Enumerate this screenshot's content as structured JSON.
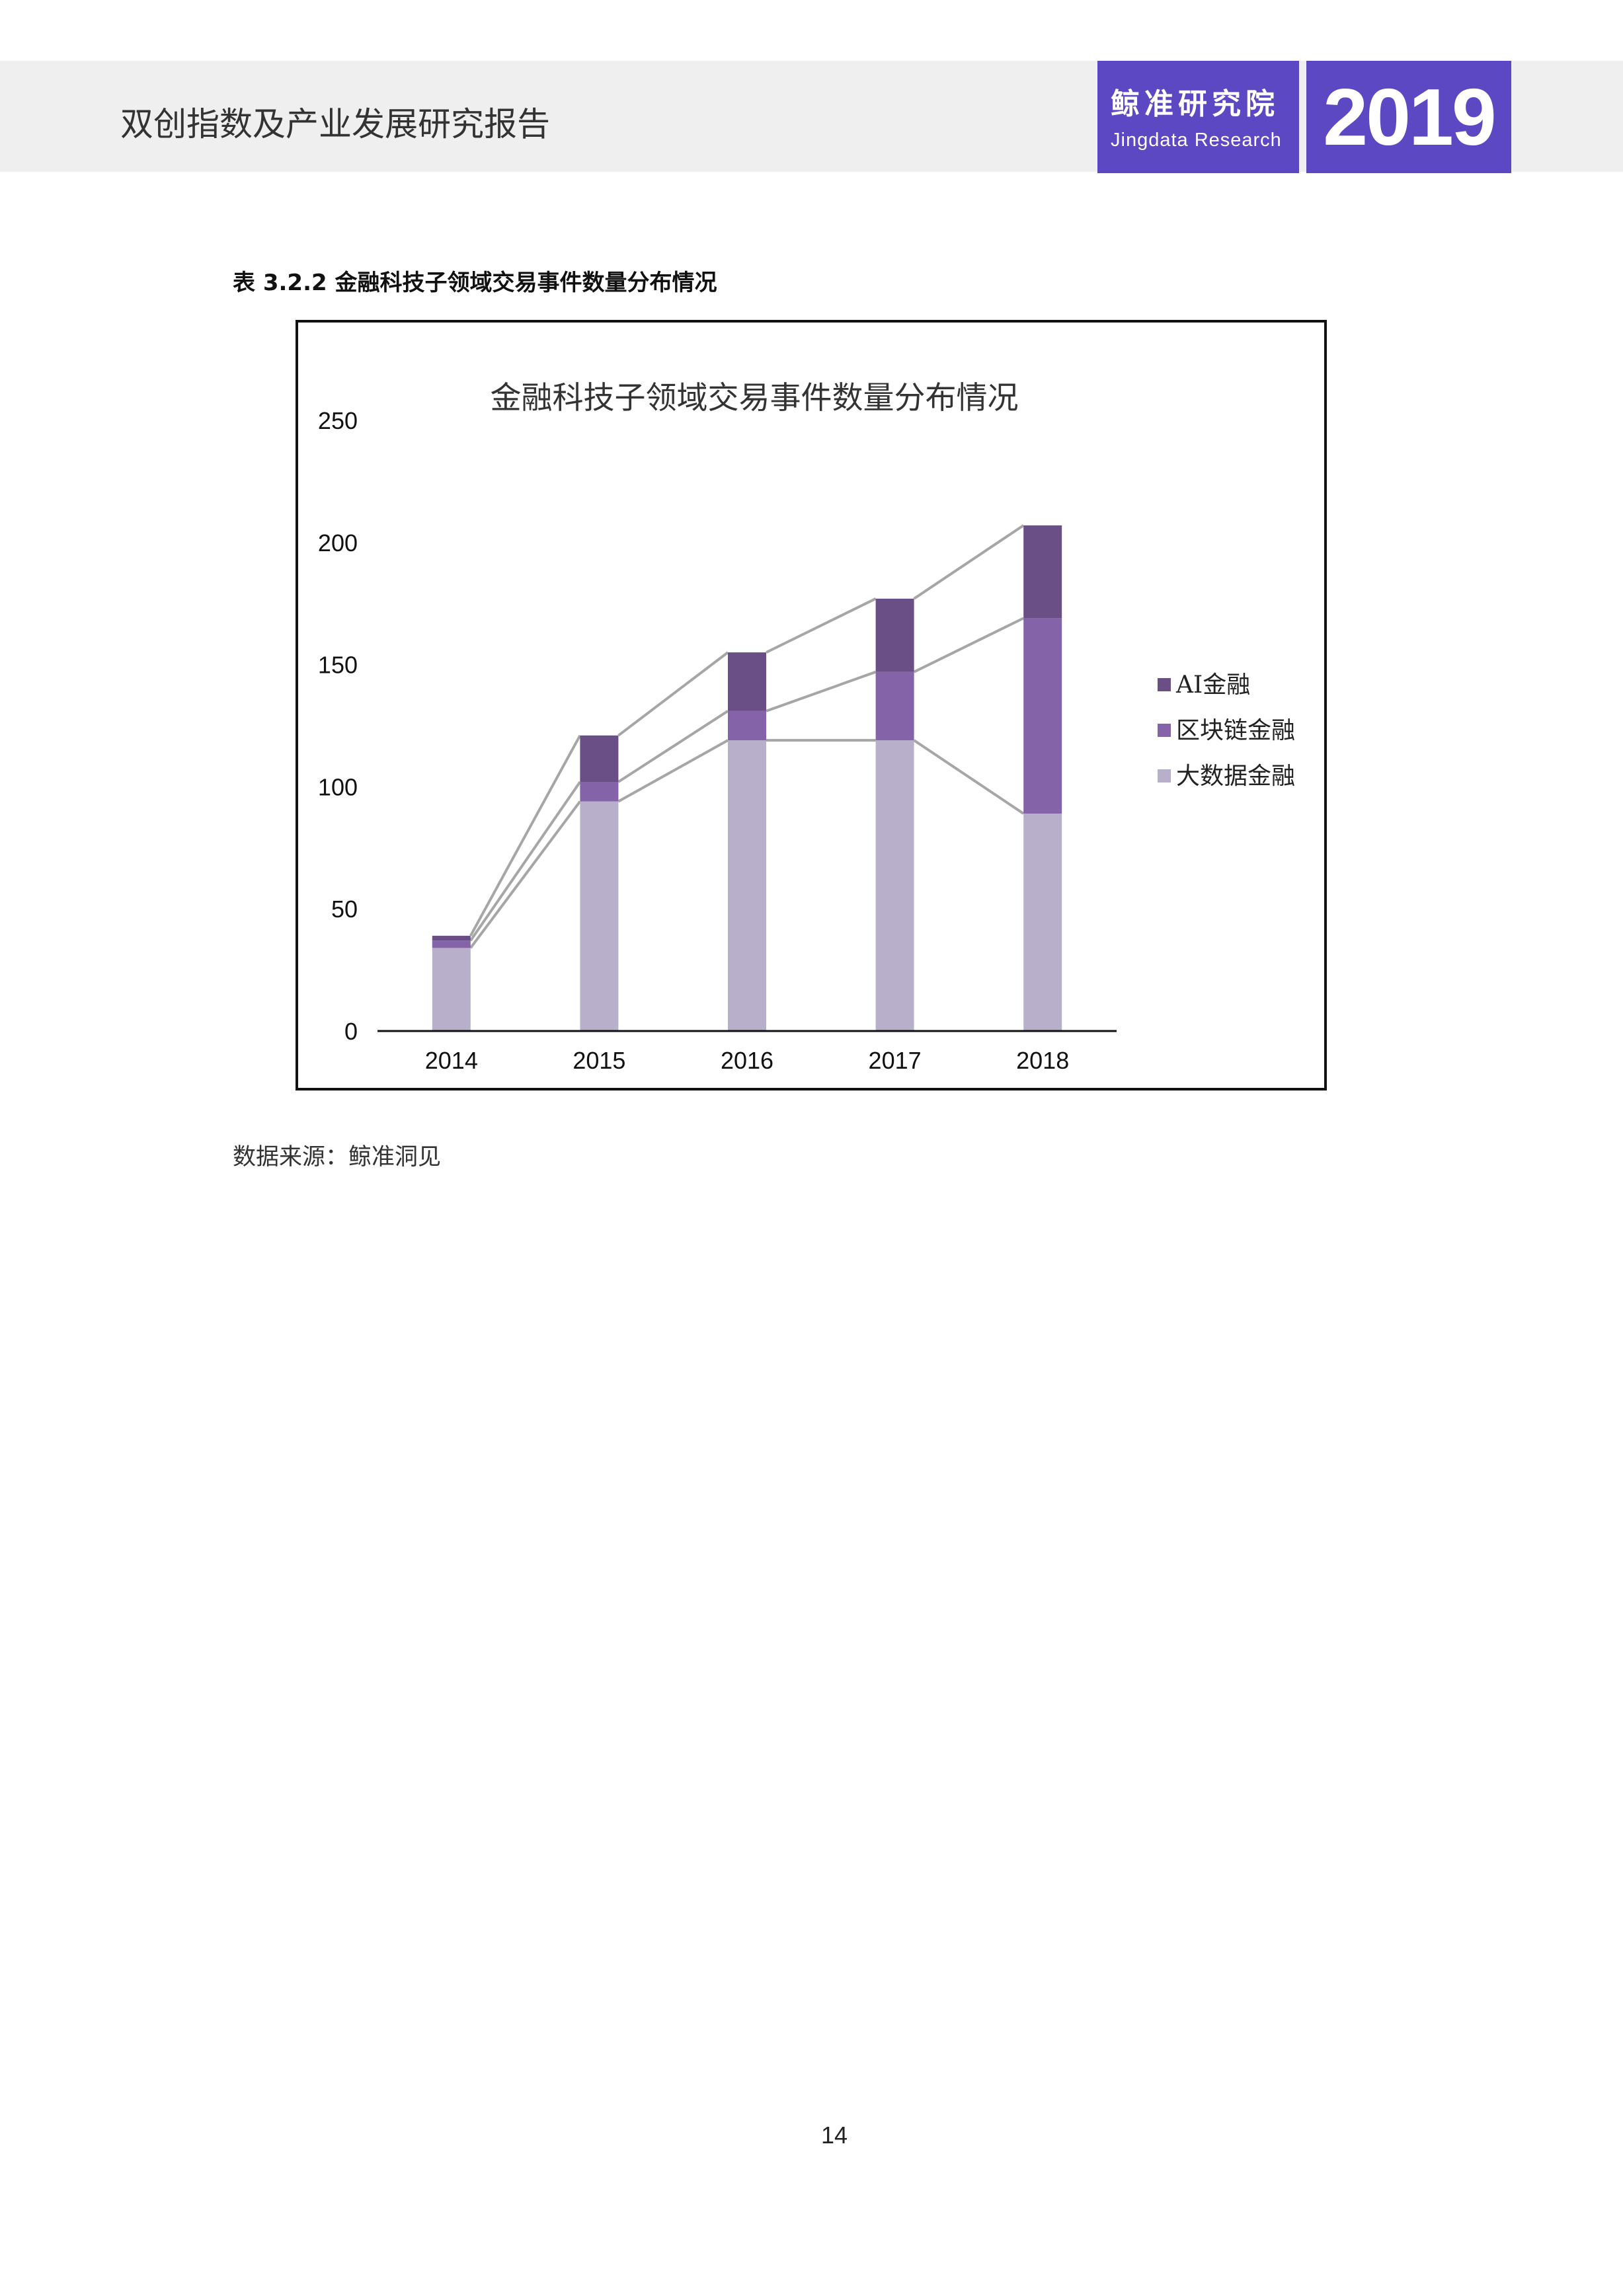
{
  "header": {
    "report_title": "双创指数及产业发展研究报告",
    "brand_cn": "鲸准研究院",
    "brand_en": "Jingdata Research",
    "year": "2019",
    "accent_color": "#5b48c2",
    "band_color": "#efefef"
  },
  "table_caption": "表 3.2.2 金融科技子领域交易事件数量分布情况",
  "chart_data": {
    "type": "bar",
    "stacked": true,
    "title": "金融科技子领域交易事件数量分布情况",
    "categories": [
      "2014",
      "2015",
      "2016",
      "2017",
      "2018"
    ],
    "series": [
      {
        "name": "大数据金融",
        "values": [
          34,
          94,
          119,
          119,
          89
        ],
        "color": "#b8b0ca"
      },
      {
        "name": "区块链金融",
        "values": [
          3,
          8,
          12,
          28,
          80
        ],
        "color": "#8463a8"
      },
      {
        "name": "AI金融",
        "values": [
          2,
          19,
          24,
          30,
          38
        ],
        "color": "#6a4e86"
      }
    ],
    "yticks": [
      "0",
      "50",
      "100",
      "150",
      "200",
      "250"
    ],
    "ylim": [
      0,
      250
    ],
    "connector_lines": true,
    "connector_color": "#a6a6a6",
    "grid": false,
    "legend_position": "right"
  },
  "source_note": "数据来源：鲸准洞见",
  "page_number": "14"
}
